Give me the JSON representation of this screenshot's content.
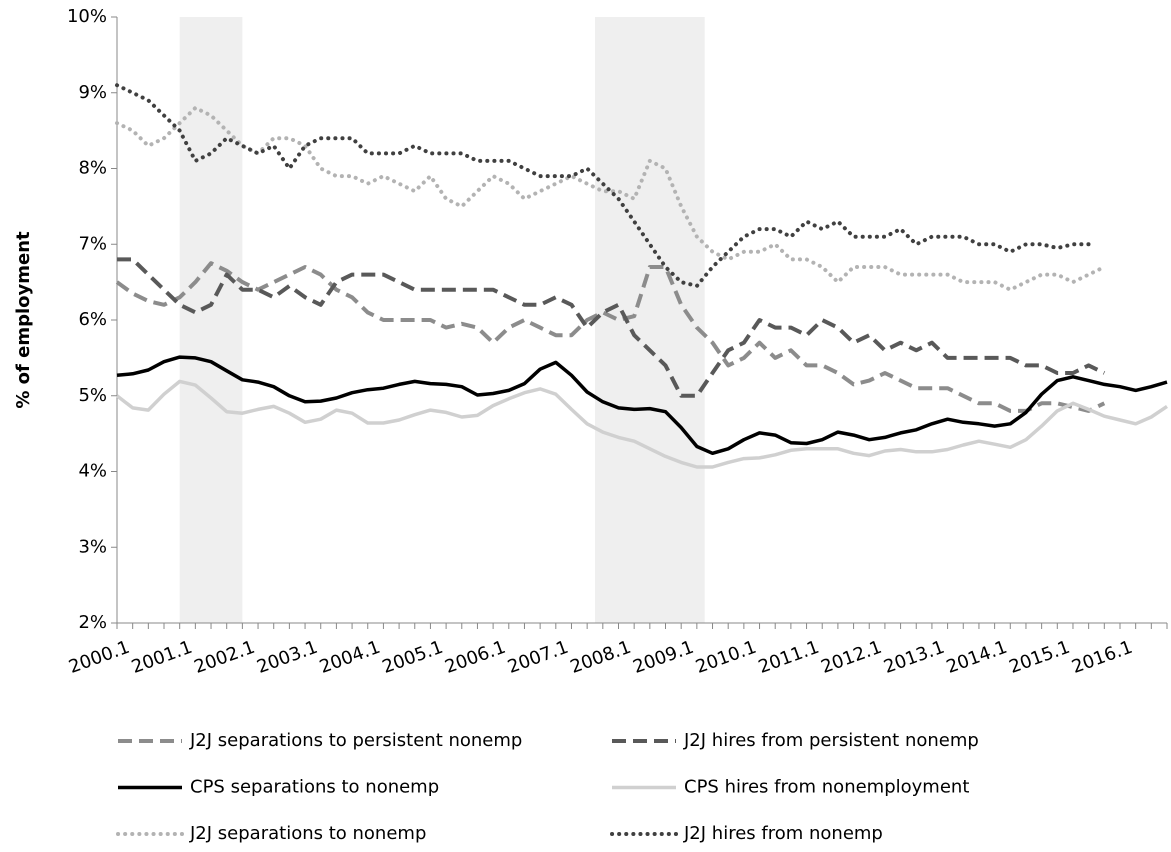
{
  "chart_data": {
    "type": "line",
    "ylabel": "% of employment",
    "categories": [
      "2000.1",
      null,
      null,
      null,
      "2001.1",
      null,
      null,
      null,
      "2002.1",
      null,
      null,
      null,
      "2003.1",
      null,
      null,
      null,
      "2004.1",
      null,
      null,
      null,
      "2005.1",
      null,
      null,
      null,
      "2006.1",
      null,
      null,
      null,
      "2007.1",
      null,
      null,
      null,
      "2008.1",
      null,
      null,
      null,
      "2009.1",
      null,
      null,
      null,
      "2010.1",
      null,
      null,
      null,
      "2011.1",
      null,
      null,
      null,
      "2012.1",
      null,
      null,
      null,
      "2013.1",
      null,
      null,
      null,
      "2014.1",
      null,
      null,
      null,
      "2015.1",
      null,
      null,
      null,
      "2016.1",
      null,
      null,
      null
    ],
    "ylim": [
      2,
      10
    ],
    "yticks": [
      {
        "value": 2,
        "label": "2%"
      },
      {
        "value": 3,
        "label": "3%"
      },
      {
        "value": 4,
        "label": "4%"
      },
      {
        "value": 5,
        "label": "5%"
      },
      {
        "value": 6,
        "label": "6%"
      },
      {
        "value": 7,
        "label": "7%"
      },
      {
        "value": 8,
        "label": "8%"
      },
      {
        "value": 9,
        "label": "9%"
      },
      {
        "value": 10,
        "label": "10%"
      }
    ],
    "grid": false,
    "shading": [
      [
        4,
        8
      ],
      [
        30.5,
        37.5
      ]
    ],
    "shading_color": "#efefef",
    "series": [
      {
        "name": "J2J separations to persistent nonemp",
        "color": "#8c8c8c",
        "style": "dashed",
        "values": [
          6.5,
          6.35,
          6.25,
          6.2,
          6.3,
          6.5,
          6.75,
          6.65,
          6.5,
          6.4,
          6.5,
          6.6,
          6.7,
          6.6,
          6.4,
          6.3,
          6.1,
          6.0,
          6.0,
          6.0,
          6.0,
          5.9,
          5.95,
          5.9,
          5.7,
          5.9,
          6.0,
          5.9,
          5.8,
          5.8,
          6.0,
          6.1,
          6.0,
          6.05,
          6.7,
          6.7,
          6.2,
          5.9,
          5.7,
          5.4,
          5.5,
          5.7,
          5.5,
          5.6,
          5.4,
          5.4,
          5.3,
          5.15,
          5.2,
          5.3,
          5.2,
          5.1,
          5.1,
          5.1,
          5.0,
          4.9,
          4.9,
          4.8,
          4.8,
          4.9,
          4.9,
          4.85,
          4.8,
          4.9,
          null,
          null,
          null,
          null
        ]
      },
      {
        "name": "J2J hires from persistent nonemp",
        "color": "#595959",
        "style": "dashed",
        "values": [
          6.8,
          6.8,
          6.6,
          6.4,
          6.2,
          6.1,
          6.2,
          6.6,
          6.4,
          6.4,
          6.3,
          6.45,
          6.3,
          6.2,
          6.5,
          6.6,
          6.6,
          6.6,
          6.5,
          6.4,
          6.4,
          6.4,
          6.4,
          6.4,
          6.4,
          6.3,
          6.2,
          6.2,
          6.3,
          6.2,
          5.9,
          6.1,
          6.2,
          5.8,
          5.6,
          5.4,
          5.0,
          5.0,
          5.3,
          5.6,
          5.7,
          6.0,
          5.9,
          5.9,
          5.8,
          6.0,
          5.9,
          5.7,
          5.8,
          5.6,
          5.7,
          5.6,
          5.7,
          5.5,
          5.5,
          5.5,
          5.5,
          5.5,
          5.4,
          5.4,
          5.3,
          5.3,
          5.4,
          5.3,
          null,
          null,
          null,
          null
        ]
      },
      {
        "name": "CPS separations to nonemp",
        "color": "#000000",
        "style": "solid",
        "values": [
          5.27,
          5.29,
          5.34,
          5.45,
          5.51,
          5.5,
          5.45,
          5.33,
          5.21,
          5.18,
          5.12,
          5.0,
          4.92,
          4.93,
          4.97,
          5.04,
          5.08,
          5.1,
          5.15,
          5.19,
          5.16,
          5.15,
          5.12,
          5.01,
          5.03,
          5.07,
          5.16,
          5.35,
          5.44,
          5.27,
          5.05,
          4.92,
          4.84,
          4.82,
          4.83,
          4.79,
          4.58,
          4.33,
          4.24,
          4.3,
          4.42,
          4.51,
          4.48,
          4.38,
          4.37,
          4.42,
          4.52,
          4.48,
          4.42,
          4.45,
          4.51,
          4.55,
          4.63,
          4.69,
          4.65,
          4.63,
          4.6,
          4.63,
          4.78,
          5.02,
          5.2,
          5.25,
          5.2,
          5.15,
          5.12,
          5.07,
          5.12,
          5.18
        ]
      },
      {
        "name": "CPS hires from nonemployment",
        "color": "#d0d0d0",
        "style": "solid",
        "values": [
          5.0,
          4.84,
          4.81,
          5.02,
          5.19,
          5.14,
          4.97,
          4.79,
          4.77,
          4.82,
          4.86,
          4.77,
          4.65,
          4.69,
          4.81,
          4.77,
          4.64,
          4.64,
          4.68,
          4.75,
          4.81,
          4.78,
          4.72,
          4.74,
          4.87,
          4.96,
          5.04,
          5.09,
          5.02,
          4.82,
          4.63,
          4.52,
          4.45,
          4.4,
          4.3,
          4.2,
          4.12,
          4.06,
          4.06,
          4.12,
          4.17,
          4.18,
          4.22,
          4.28,
          4.3,
          4.3,
          4.3,
          4.24,
          4.21,
          4.27,
          4.29,
          4.26,
          4.26,
          4.29,
          4.35,
          4.4,
          4.36,
          4.32,
          4.42,
          4.6,
          4.8,
          4.9,
          4.82,
          4.73,
          4.68,
          4.63,
          4.72,
          4.86
        ]
      },
      {
        "name": "J2J separations to nonemp",
        "color": "#b3b3b3",
        "style": "dotted",
        "values": [
          8.6,
          8.5,
          8.3,
          8.4,
          8.6,
          8.8,
          8.7,
          8.5,
          8.3,
          8.2,
          8.4,
          8.4,
          8.3,
          8.0,
          7.9,
          7.9,
          7.8,
          7.9,
          7.8,
          7.7,
          7.9,
          7.6,
          7.5,
          7.7,
          7.9,
          7.8,
          7.6,
          7.7,
          7.8,
          7.9,
          7.8,
          7.7,
          7.7,
          7.6,
          8.1,
          8.0,
          7.5,
          7.1,
          6.9,
          6.8,
          6.9,
          6.9,
          7.0,
          6.8,
          6.8,
          6.7,
          6.5,
          6.7,
          6.7,
          6.7,
          6.6,
          6.6,
          6.6,
          6.6,
          6.5,
          6.5,
          6.5,
          6.4,
          6.5,
          6.6,
          6.6,
          6.5,
          6.6,
          6.7,
          null,
          null,
          null,
          null
        ]
      },
      {
        "name": "J2J hires from nonemp",
        "color": "#404040",
        "style": "dotted",
        "values": [
          9.1,
          9.0,
          8.9,
          8.7,
          8.5,
          8.1,
          8.2,
          8.4,
          8.3,
          8.2,
          8.3,
          8.0,
          8.3,
          8.4,
          8.4,
          8.4,
          8.2,
          8.2,
          8.2,
          8.3,
          8.2,
          8.2,
          8.2,
          8.1,
          8.1,
          8.1,
          8.0,
          7.9,
          7.9,
          7.9,
          8.0,
          7.8,
          7.6,
          7.3,
          7.0,
          6.7,
          6.5,
          6.45,
          6.7,
          6.9,
          7.1,
          7.2,
          7.2,
          7.1,
          7.3,
          7.2,
          7.3,
          7.1,
          7.1,
          7.1,
          7.2,
          7.0,
          7.1,
          7.1,
          7.1,
          7.0,
          7.0,
          6.9,
          7.0,
          7.0,
          6.95,
          7.0,
          7.0,
          null,
          null,
          null,
          null,
          null
        ]
      }
    ]
  }
}
